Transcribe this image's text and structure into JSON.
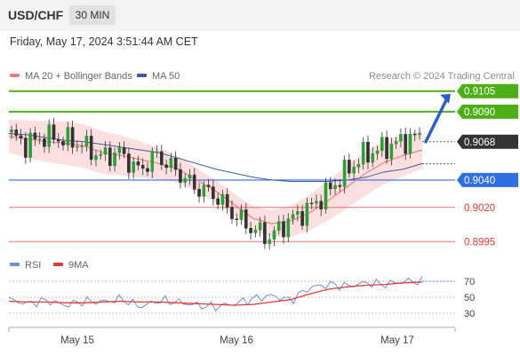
{
  "header": {
    "symbol": "USD/CHF",
    "timeframe": "30 MIN"
  },
  "timestamp": "Friday, May 17, 2024 3:51:44 AM CET",
  "legend": {
    "main": [
      {
        "label": "MA 20 + Bollinger Bands",
        "color": "#f08080"
      },
      {
        "label": "MA 50",
        "color": "#3a5fa0"
      }
    ],
    "rsi": [
      {
        "label": "RSI",
        "color": "#6b8fe0"
      },
      {
        "label": "9MA",
        "color": "#e53935"
      }
    ]
  },
  "credit": "Research © 2024 Trading Central",
  "chart_data": [
    {
      "type": "candlestick",
      "x_labels": [
        "May 15",
        "May 16",
        "May 17"
      ],
      "ylim": [
        0.899,
        0.911
      ],
      "current_price": 0.9068,
      "levels": [
        {
          "label": "0.9105",
          "value": 0.9105,
          "kind": "resistance",
          "color": "#4caf16"
        },
        {
          "label": "0.9090",
          "value": 0.909,
          "kind": "resistance",
          "color": "#4caf16"
        },
        {
          "label": "0.9068",
          "value": 0.9068,
          "kind": "price",
          "color": "#333333"
        },
        {
          "label": "0.9040",
          "value": 0.904,
          "kind": "pivot",
          "color": "#2f6fe0"
        },
        {
          "label": "0.9020",
          "value": 0.902,
          "kind": "support",
          "color": "#e53935"
        },
        {
          "label": "0.8995",
          "value": 0.8995,
          "kind": "support",
          "color": "#e53935"
        }
      ],
      "price_path": [
        0.9075,
        0.9066,
        0.9072,
        0.907,
        0.9066,
        0.9057,
        0.906,
        0.9047,
        0.9058,
        0.9047,
        0.9035,
        0.903,
        0.9016,
        0.9005,
        0.8998,
        0.901,
        0.9018,
        0.903,
        0.9045,
        0.9058,
        0.9063,
        0.9068,
        0.9072
      ],
      "ma20_path": [
        0.9072,
        0.907,
        0.9068,
        0.9067,
        0.9065,
        0.906,
        0.9058,
        0.9055,
        0.9052,
        0.9048,
        0.904,
        0.9032,
        0.9022,
        0.9012,
        0.9008,
        0.901,
        0.9016,
        0.9025,
        0.9035,
        0.9045,
        0.9053,
        0.9058,
        0.9062
      ],
      "ma50_path": [
        0.9074,
        0.9073,
        0.9071,
        0.9069,
        0.9068,
        0.9066,
        0.9064,
        0.9062,
        0.906,
        0.9056,
        0.9052,
        0.9048,
        0.9045,
        0.9042,
        0.904,
        0.9039,
        0.9039,
        0.9039,
        0.904,
        0.9042,
        0.9046,
        0.9048,
        0.9052
      ]
    },
    {
      "type": "line",
      "title": "RSI",
      "ylim": [
        20,
        80
      ],
      "y_ticks": [
        70,
        50,
        30
      ],
      "series": [
        {
          "name": "RSI",
          "values": [
            47,
            42,
            46,
            40,
            45,
            44,
            48,
            38,
            46,
            44,
            40,
            38,
            42,
            48,
            52,
            46,
            62,
            66,
            64,
            68,
            66,
            70,
            70
          ]
        },
        {
          "name": "9MA",
          "values": [
            45,
            44,
            44,
            43,
            43,
            44,
            45,
            44,
            44,
            43,
            42,
            41,
            40,
            41,
            44,
            47,
            54,
            60,
            63,
            65,
            66,
            68,
            69
          ]
        }
      ]
    }
  ]
}
